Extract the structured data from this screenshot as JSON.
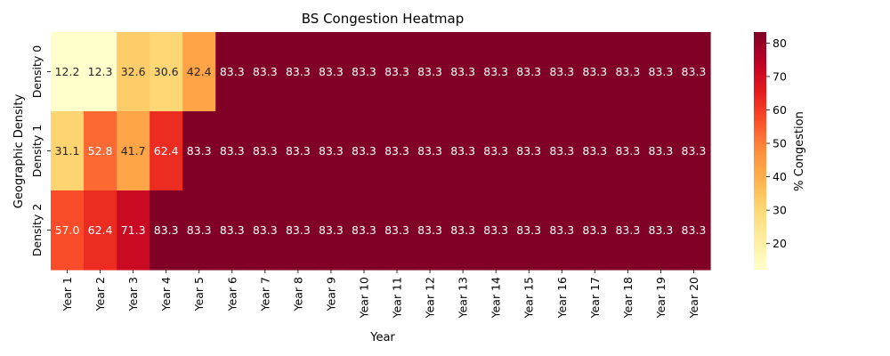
{
  "chart_data": {
    "type": "heatmap",
    "title": "BS Congestion Heatmap",
    "xlabel": "Year",
    "ylabel": "Geographic Density",
    "colorbar_label": "% Congestion",
    "colormap": "YlOrRd",
    "vmin": 12.2,
    "vmax": 83.3,
    "colorbar_ticks": [
      20,
      30,
      40,
      50,
      60,
      70,
      80
    ],
    "x_categories": [
      "Year 1",
      "Year 2",
      "Year 3",
      "Year 4",
      "Year 5",
      "Year 6",
      "Year 7",
      "Year 8",
      "Year 9",
      "Year 10",
      "Year 11",
      "Year 12",
      "Year 13",
      "Year 14",
      "Year 15",
      "Year 16",
      "Year 17",
      "Year 18",
      "Year 19",
      "Year 20"
    ],
    "y_categories": [
      "Density 0",
      "Density 1",
      "Density 2"
    ],
    "values": [
      [
        12.2,
        12.3,
        32.6,
        30.6,
        42.4,
        83.3,
        83.3,
        83.3,
        83.3,
        83.3,
        83.3,
        83.3,
        83.3,
        83.3,
        83.3,
        83.3,
        83.3,
        83.3,
        83.3,
        83.3
      ],
      [
        31.1,
        52.8,
        41.7,
        62.4,
        83.3,
        83.3,
        83.3,
        83.3,
        83.3,
        83.3,
        83.3,
        83.3,
        83.3,
        83.3,
        83.3,
        83.3,
        83.3,
        83.3,
        83.3,
        83.3
      ],
      [
        57.0,
        62.4,
        71.3,
        83.3,
        83.3,
        83.3,
        83.3,
        83.3,
        83.3,
        83.3,
        83.3,
        83.3,
        83.3,
        83.3,
        83.3,
        83.3,
        83.3,
        83.3,
        83.3,
        83.3
      ]
    ],
    "value_format": "one-decimal"
  }
}
